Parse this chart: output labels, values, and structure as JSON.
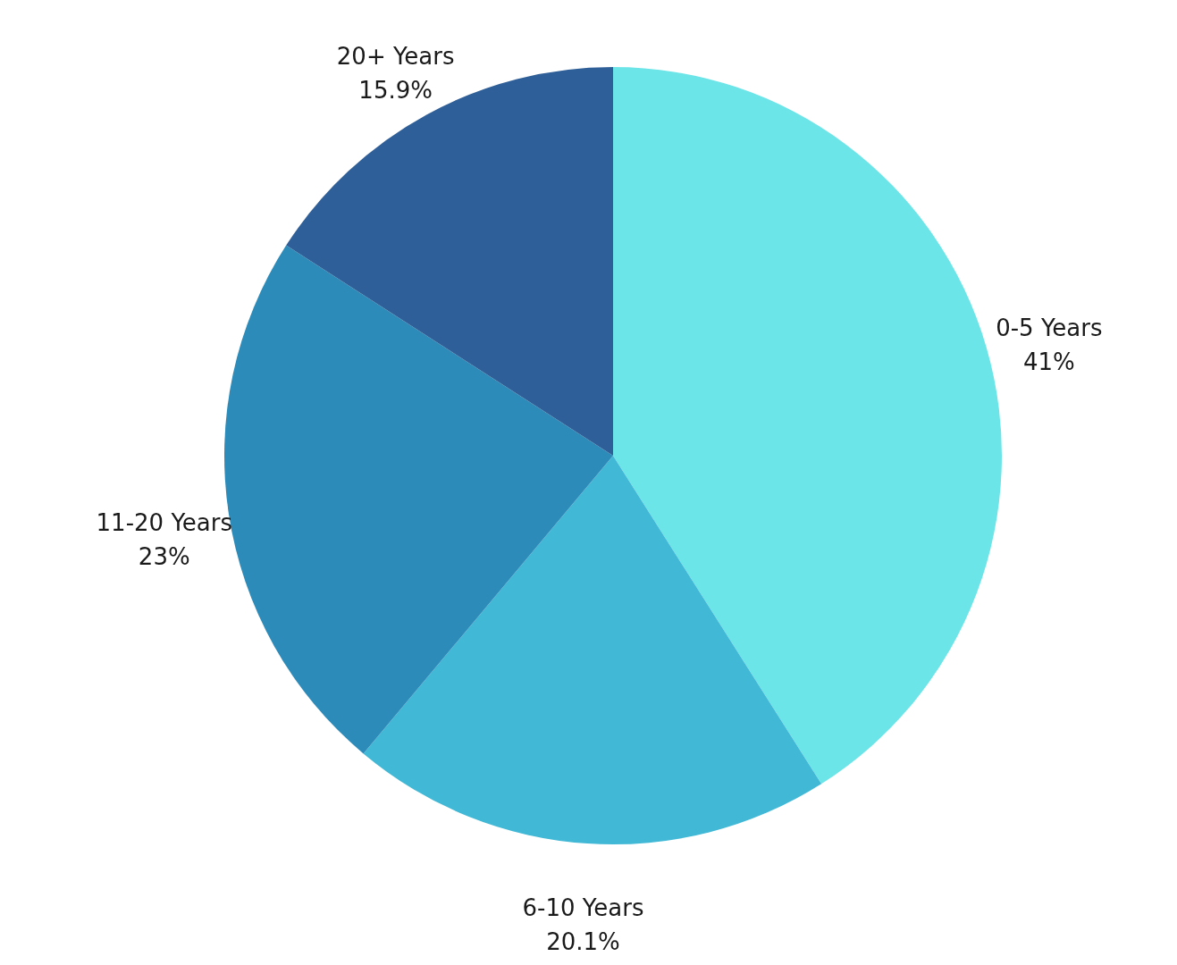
{
  "chart_data": {
    "type": "pie",
    "categories": [
      "0-5 Years",
      "6-10 Years",
      "11-20 Years",
      "20+ Years"
    ],
    "values": [
      41,
      20.1,
      23,
      15.9
    ],
    "colors": [
      "#6ce5e8",
      "#41b8d5",
      "#2d8bba",
      "#2f5f98"
    ],
    "value_labels": [
      "41%",
      "20.1%",
      "23%",
      "15.9%"
    ]
  }
}
